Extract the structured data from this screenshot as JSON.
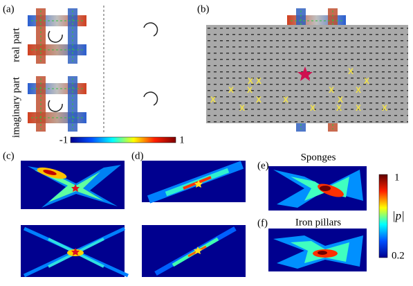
{
  "panels": {
    "a": {
      "label": "(a)",
      "row_labels": [
        "real part",
        "imaginary part"
      ],
      "colorbar_ticks": [
        -1,
        1
      ]
    },
    "b": {
      "label": "(b)",
      "marker": "X"
    },
    "c": {
      "label": "(c)"
    },
    "d": {
      "label": "(d)"
    },
    "e": {
      "label": "(e)",
      "title": "Sponges"
    },
    "f": {
      "label": "(f)",
      "title": "Iron pillars"
    },
    "colorbar": {
      "label": "|p|",
      "ticks": [
        1,
        0.2
      ]
    }
  }
}
